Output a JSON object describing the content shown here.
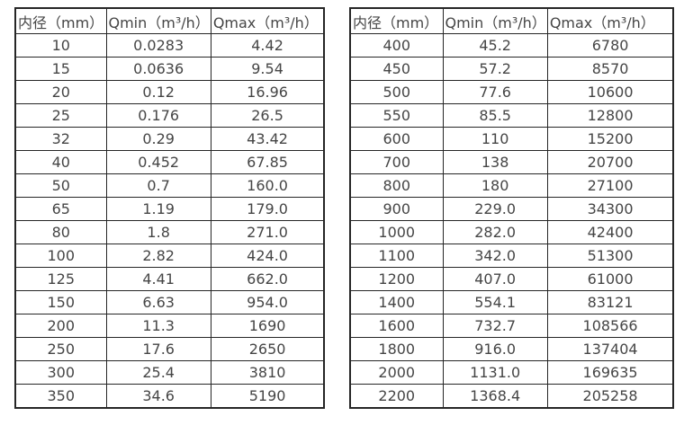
{
  "page": {
    "background_color": "#ffffff",
    "text_color": "#454545",
    "border_color": "#262626"
  },
  "tables": [
    {
      "name": "small-diameter-table",
      "headers": [
        "内径（mm）",
        "Qmin（m³/h）",
        "Qmax（m³/h）"
      ],
      "rows": [
        [
          "10",
          "0.0283",
          "4.42"
        ],
        [
          "15",
          "0.0636",
          "9.54"
        ],
        [
          "20",
          "0.12",
          "16.96"
        ],
        [
          "25",
          "0.176",
          "26.5"
        ],
        [
          "32",
          "0.29",
          "43.42"
        ],
        [
          "40",
          "0.452",
          "67.85"
        ],
        [
          "50",
          "0.7",
          "160.0"
        ],
        [
          "65",
          "1.19",
          "179.0"
        ],
        [
          "80",
          "1.8",
          "271.0"
        ],
        [
          "100",
          "2.82",
          "424.0"
        ],
        [
          "125",
          "4.41",
          "662.0"
        ],
        [
          "150",
          "6.63",
          "954.0"
        ],
        [
          "200",
          "11.3",
          "1690"
        ],
        [
          "250",
          "17.6",
          "2650"
        ],
        [
          "300",
          "25.4",
          "3810"
        ],
        [
          "350",
          "34.6",
          "5190"
        ]
      ]
    },
    {
      "name": "large-diameter-table",
      "headers": [
        "内径（mm）",
        "Qmin（m³/h）",
        "Qmax（m³/h）"
      ],
      "rows": [
        [
          "400",
          "45.2",
          "6780"
        ],
        [
          "450",
          "57.2",
          "8570"
        ],
        [
          "500",
          "77.6",
          "10600"
        ],
        [
          "550",
          "85.5",
          "12800"
        ],
        [
          "600",
          "110",
          "15200"
        ],
        [
          "700",
          "138",
          "20700"
        ],
        [
          "800",
          "180",
          "27100"
        ],
        [
          "900",
          "229.0",
          "34300"
        ],
        [
          "1000",
          "282.0",
          "42400"
        ],
        [
          "1100",
          "342.0",
          "51300"
        ],
        [
          "1200",
          "407.0",
          "61000"
        ],
        [
          "1400",
          "554.1",
          "83121"
        ],
        [
          "1600",
          "732.7",
          "108566"
        ],
        [
          "1800",
          "916.0",
          "137404"
        ],
        [
          "2000",
          "1131.0",
          "169635"
        ],
        [
          "2200",
          "1368.4",
          "205258"
        ]
      ]
    }
  ]
}
